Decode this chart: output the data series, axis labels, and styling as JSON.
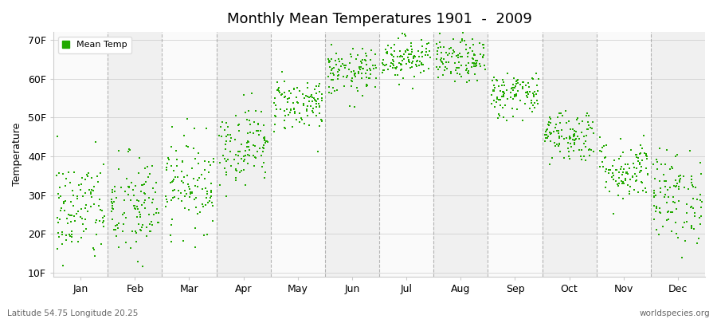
{
  "title": "Monthly Mean Temperatures 1901  -  2009",
  "ylabel": "Temperature",
  "bottom_left": "Latitude 54.75 Longitude 20.25",
  "bottom_right": "worldspecies.org",
  "legend_label": "Mean Temp",
  "dot_color": "#22AA00",
  "background_color": "#F0F0F0",
  "band_color_light": "#F0F0F0",
  "band_color_white": "#FAFAFA",
  "yticks": [
    10,
    20,
    30,
    40,
    50,
    60,
    70
  ],
  "ytick_labels": [
    "10F",
    "20F",
    "30F",
    "40F",
    "50F",
    "60F",
    "70F"
  ],
  "ylim": [
    9,
    72
  ],
  "months": [
    "Jan",
    "Feb",
    "Mar",
    "Apr",
    "May",
    "Jun",
    "Jul",
    "Aug",
    "Sep",
    "Oct",
    "Nov",
    "Dec"
  ],
  "mean_temps_F": [
    26.0,
    26.5,
    33.0,
    43.0,
    53.5,
    61.5,
    65.5,
    64.5,
    56.0,
    45.5,
    36.5,
    29.5
  ],
  "std_temps_F": [
    7.0,
    7.0,
    6.0,
    5.0,
    3.5,
    3.0,
    2.8,
    2.8,
    3.0,
    3.5,
    4.0,
    6.0
  ],
  "n_years": 109,
  "seed": 42
}
